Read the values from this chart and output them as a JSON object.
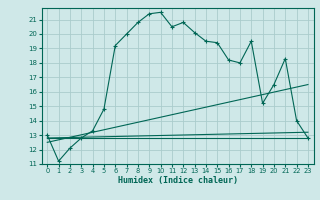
{
  "xlabel": "Humidex (Indice chaleur)",
  "ylabel": "",
  "background_color": "#cfe8e8",
  "grid_color": "#aacccc",
  "line_color": "#006655",
  "xlim": [
    -0.5,
    23.5
  ],
  "ylim": [
    11,
    21.8
  ],
  "xticks": [
    0,
    1,
    2,
    3,
    4,
    5,
    6,
    7,
    8,
    9,
    10,
    11,
    12,
    13,
    14,
    15,
    16,
    17,
    18,
    19,
    20,
    21,
    22,
    23
  ],
  "yticks": [
    11,
    12,
    13,
    14,
    15,
    16,
    17,
    18,
    19,
    20,
    21
  ],
  "line1_x": [
    0,
    1,
    2,
    3,
    4,
    5,
    6,
    7,
    8,
    9,
    10,
    11,
    12,
    13,
    14,
    15,
    16,
    17,
    18,
    19,
    20,
    21,
    22,
    23
  ],
  "line1_y": [
    13.0,
    11.2,
    12.1,
    12.8,
    13.3,
    14.8,
    19.2,
    20.0,
    20.8,
    21.4,
    21.5,
    20.5,
    20.8,
    20.1,
    19.5,
    19.4,
    18.2,
    18.0,
    19.5,
    15.2,
    16.5,
    18.3,
    14.0,
    12.8
  ],
  "line2_x": [
    0,
    23
  ],
  "line2_y": [
    12.8,
    12.8
  ],
  "line3_x": [
    0,
    23
  ],
  "line3_y": [
    12.8,
    13.2
  ],
  "line4_x": [
    0,
    23
  ],
  "line4_y": [
    12.5,
    16.5
  ]
}
